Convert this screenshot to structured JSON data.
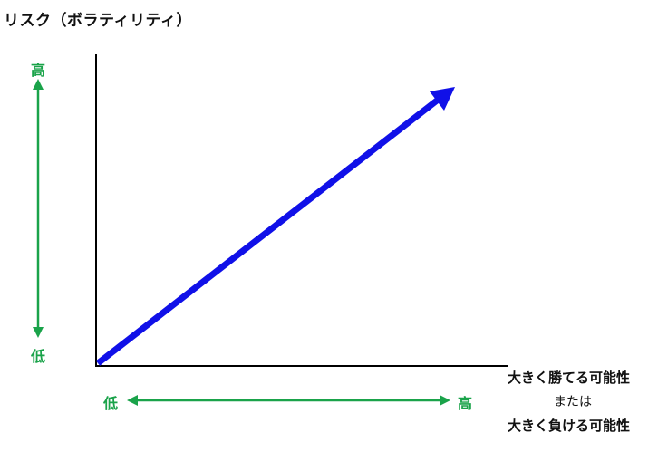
{
  "title": "リスク（ボラティリティ）",
  "y_axis": {
    "high_label": "高",
    "low_label": "低"
  },
  "x_axis": {
    "low_label": "低",
    "high_label": "高",
    "caption_line1": "大きく勝てる可能性",
    "caption_line2": "または",
    "caption_line3": "大きく負ける可能性"
  },
  "colors": {
    "green": "#1aa34a",
    "blue": "#1010e8",
    "axis": "#000000"
  }
}
